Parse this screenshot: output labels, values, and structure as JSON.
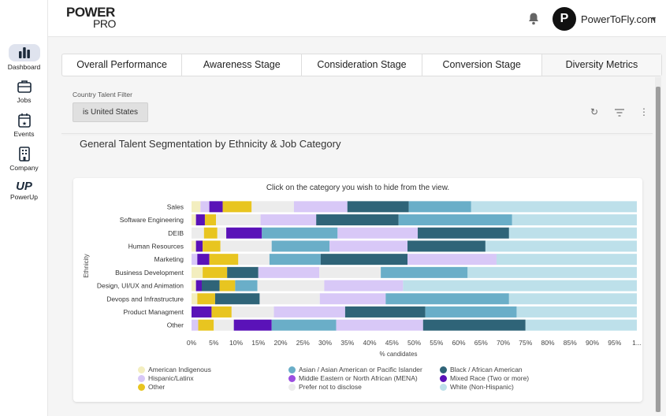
{
  "brand": {
    "line1": "POWER",
    "line2": "PRO"
  },
  "account": {
    "initial": "P",
    "name": "PowerToFly.com"
  },
  "nav": [
    {
      "label": "Dashboard",
      "icon": "bar-chart-icon"
    },
    {
      "label": "Jobs",
      "icon": "briefcase-icon"
    },
    {
      "label": "Events",
      "icon": "calendar-star-icon"
    },
    {
      "label": "Company",
      "icon": "building-icon"
    },
    {
      "label": "PowerUp",
      "icon": "powerup-logo-icon",
      "glyph": "UP"
    }
  ],
  "tabs": [
    "Overall Performance",
    "Awareness Stage",
    "Consideration Stage",
    "Conversion Stage",
    "Diversity Metrics"
  ],
  "filter": {
    "label": "Country Talent Filter",
    "value": "is United States"
  },
  "section_title": "General Talent Segmentation by Ethnicity & Job Category",
  "chart_note": "Click on the category you wish to hide from the view.",
  "colors": {
    "American Indigenous": "#f3eebf",
    "Hispanic/Latinx": "#d8c8f7",
    "Other": "#e8c520",
    "Asian / Asian American or Pacific Islander": "#6aaec8",
    "Middle Eastern or North African (MENA)": "#9b4ee0",
    "Prefer not to disclose": "#ececec",
    "Black / African American": "#2f6478",
    "Mixed Race (Two or more)": "#5a12b8",
    "White (Non-Hispanic)": "#bde0ea"
  },
  "chart_data": {
    "type": "bar",
    "orientation": "horizontal",
    "stacked": true,
    "ylabel": "Ethnicity",
    "xlabel": "% candidates",
    "xlim": [
      0,
      100
    ],
    "xticks": [
      "0%",
      "5%",
      "10%",
      "15%",
      "20%",
      "25%",
      "30%",
      "35%",
      "40%",
      "45%",
      "50%",
      "55%",
      "60%",
      "65%",
      "70%",
      "75%",
      "80%",
      "85%",
      "90%",
      "95%",
      "1..."
    ],
    "categories": [
      "Sales",
      "Software Engineering",
      "DEIB",
      "Human Resources",
      "Marketing",
      "Business Development",
      "Design, UI/UX and Animation",
      "Devops and Infrastructure",
      "Product Managment",
      "Other"
    ],
    "segments": [
      [
        [
          "American Indigenous",
          2
        ],
        [
          "Hispanic/Latinx",
          2
        ],
        [
          "Mixed Race (Two or more)",
          3
        ],
        [
          "Other",
          6.5
        ],
        [
          "Prefer not to disclose",
          9.5
        ],
        [
          "Hispanic/Latinx",
          12
        ],
        [
          "Black / African American",
          13.8
        ],
        [
          "Asian / Asian American or Pacific Islander",
          14
        ],
        [
          "White (Non-Hispanic)",
          37.2
        ]
      ],
      [
        [
          "American Indigenous",
          1
        ],
        [
          "Mixed Race (Two or more)",
          2
        ],
        [
          "Other",
          2.5
        ],
        [
          "Prefer not to disclose",
          10
        ],
        [
          "Hispanic/Latinx",
          12.5
        ],
        [
          "Black / African American",
          18.5
        ],
        [
          "Asian / Asian American or Pacific Islander",
          25.5
        ],
        [
          "White (Non-Hispanic)",
          28
        ]
      ],
      [
        [
          "Prefer not to disclose",
          2.8
        ],
        [
          "Other",
          3
        ],
        [
          "Prefer not to disclose",
          2
        ],
        [
          "Mixed Race (Two or more)",
          8
        ],
        [
          "Asian / Asian American or Pacific Islander",
          17
        ],
        [
          "Hispanic/Latinx",
          18
        ],
        [
          "Black / African American",
          20.5
        ],
        [
          "White (Non-Hispanic)",
          28.7
        ]
      ],
      [
        [
          "American Indigenous",
          1
        ],
        [
          "Mixed Race (Two or more)",
          1.5
        ],
        [
          "Other",
          4
        ],
        [
          "Prefer not to disclose",
          11.5
        ],
        [
          "Asian / Asian American or Pacific Islander",
          13
        ],
        [
          "Hispanic/Latinx",
          17.5
        ],
        [
          "Black / African American",
          17.5
        ],
        [
          "White (Non-Hispanic)",
          34
        ]
      ],
      [
        [
          "Hispanic/Latinx",
          1.3
        ],
        [
          "Mixed Race (Two or more)",
          2.7
        ],
        [
          "Other",
          6.5
        ],
        [
          "Prefer not to disclose",
          7
        ],
        [
          "Asian / Asian American or Pacific Islander",
          11.5
        ],
        [
          "Black / African American",
          19.5
        ],
        [
          "Hispanic/Latinx",
          20
        ],
        [
          "White (Non-Hispanic)",
          31.5
        ]
      ],
      [
        [
          "American Indigenous",
          2.5
        ],
        [
          "Other",
          5.5
        ],
        [
          "Black / African American",
          7
        ],
        [
          "Hispanic/Latinx",
          13.7
        ],
        [
          "Prefer not to disclose",
          13.8
        ],
        [
          "Asian / Asian American or Pacific Islander",
          19.5
        ],
        [
          "White (Non-Hispanic)",
          38
        ]
      ],
      [
        [
          "American Indigenous",
          1
        ],
        [
          "Mixed Race (Two or more)",
          1.3
        ],
        [
          "Black / African American",
          4
        ],
        [
          "Other",
          3.5
        ],
        [
          "Asian / Asian American or Pacific Islander",
          5
        ],
        [
          "Prefer not to disclose",
          15
        ],
        [
          "Hispanic/Latinx",
          17.7
        ],
        [
          "White (Non-Hispanic)",
          52.5
        ]
      ],
      [
        [
          "American Indigenous",
          1.3
        ],
        [
          "Other",
          4
        ],
        [
          "Black / African American",
          10
        ],
        [
          "Prefer not to disclose",
          13.5
        ],
        [
          "Hispanic/Latinx",
          14.8
        ],
        [
          "Asian / Asian American or Pacific Islander",
          27.7
        ],
        [
          "White (Non-Hispanic)",
          28.7
        ]
      ],
      [
        [
          "Mixed Race (Two or more)",
          4.5
        ],
        [
          "Other",
          4.5
        ],
        [
          "Prefer not to disclose",
          9.5
        ],
        [
          "Hispanic/Latinx",
          16
        ],
        [
          "Black / African American",
          18
        ],
        [
          "Asian / Asian American or Pacific Islander",
          20.5
        ],
        [
          "White (Non-Hispanic)",
          27
        ]
      ],
      [
        [
          "Hispanic/Latinx",
          1.5
        ],
        [
          "Other",
          3.5
        ],
        [
          "Prefer not to disclose",
          4.5
        ],
        [
          "Mixed Race (Two or more)",
          8.5
        ],
        [
          "Asian / Asian American or Pacific Islander",
          14.5
        ],
        [
          "Hispanic/Latinx",
          19.5
        ],
        [
          "Black / African American",
          23
        ],
        [
          "White (Non-Hispanic)",
          25
        ]
      ]
    ],
    "legend": [
      [
        "American Indigenous",
        "Hispanic/Latinx",
        "Other"
      ],
      [
        "Asian / Asian American or Pacific Islander",
        "Middle Eastern or North African (MENA)",
        "Prefer not to disclose"
      ],
      [
        "Black / African American",
        "Mixed Race (Two or more)",
        "White (Non-Hispanic)"
      ]
    ],
    "legend_position": "bottom"
  }
}
